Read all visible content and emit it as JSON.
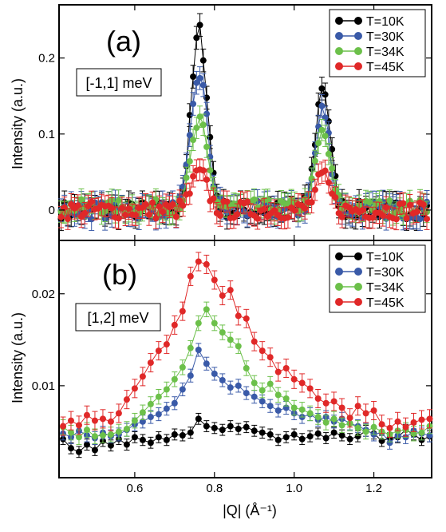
{
  "figure": {
    "xlabel": "|Q| (Å⁻¹)",
    "x_ticks": [
      0.6,
      0.8,
      1.0,
      1.2
    ],
    "x_tick_labels": [
      "0.6",
      "0.8",
      "1.0",
      "1.2"
    ]
  },
  "colors": {
    "T10": "#000000",
    "T30": "#3a5aa8",
    "T34": "#6cc04a",
    "T45": "#e02828"
  },
  "chart_data": [
    {
      "type": "scatter",
      "panel_label": "(a)",
      "annotation": "[-1,1] meV",
      "xlabel": "|Q| (Å⁻¹)",
      "ylabel": "Intensity (a.u.)",
      "xlim": [
        0.41,
        1.345
      ],
      "ylim": [
        -0.04,
        0.27
      ],
      "y_ticks": [
        0,
        0.1,
        0.2
      ],
      "y_tick_labels": [
        "0",
        "0.1",
        "0.2"
      ],
      "legend_position": "top-right",
      "error_bars": true,
      "peaks": [
        {
          "center": 0.762,
          "width": 0.02,
          "amplitudes": {
            "T=10K": 0.235,
            "T=30K": 0.18,
            "T=34K": 0.112,
            "T=45K": 0.048
          }
        },
        {
          "center": 1.072,
          "width": 0.018,
          "amplitudes": {
            "T=10K": 0.165,
            "T=30K": 0.132,
            "T=34K": 0.098,
            "T=45K": 0.043
          }
        }
      ],
      "series": [
        {
          "name": "T=10K",
          "color": "#000000",
          "baseline": 0.0,
          "noise": 0.012,
          "err": 0.015
        },
        {
          "name": "T=30K",
          "color": "#3a5aa8",
          "baseline": 0.0,
          "noise": 0.012,
          "err": 0.015
        },
        {
          "name": "T=34K",
          "color": "#6cc04a",
          "baseline": 0.004,
          "noise": 0.01,
          "err": 0.014
        },
        {
          "name": "T=45K",
          "color": "#e02828",
          "baseline": 0.0,
          "noise": 0.012,
          "err": 0.014
        }
      ]
    },
    {
      "type": "scatter",
      "panel_label": "(b)",
      "annotation": "[1,2] meV",
      "xlabel": "|Q| (Å⁻¹)",
      "ylabel": "Intensity (a.u.)",
      "xlim": [
        0.41,
        1.345
      ],
      "ylim": [
        0.0,
        0.0258
      ],
      "y_ticks": [
        0.01,
        0.02
      ],
      "y_tick_labels": [
        "0.01",
        "0.02"
      ],
      "legend_position": "top-right",
      "error_bars": true,
      "series": [
        {
          "name": "T=10K",
          "color": "#000000",
          "x": [
            0.42,
            0.44,
            0.46,
            0.48,
            0.5,
            0.52,
            0.54,
            0.56,
            0.58,
            0.6,
            0.62,
            0.64,
            0.66,
            0.68,
            0.7,
            0.72,
            0.74,
            0.76,
            0.78,
            0.8,
            0.82,
            0.84,
            0.86,
            0.88,
            0.9,
            0.92,
            0.94,
            0.96,
            0.98,
            1.0,
            1.02,
            1.04,
            1.06,
            1.08,
            1.1,
            1.12,
            1.14,
            1.16,
            1.18,
            1.2,
            1.22,
            1.24,
            1.26,
            1.28,
            1.3,
            1.32,
            1.34
          ],
          "y": [
            0.0042,
            0.0032,
            0.0028,
            0.0036,
            0.003,
            0.004,
            0.0035,
            0.0042,
            0.0036,
            0.0044,
            0.0041,
            0.0038,
            0.0044,
            0.0041,
            0.0047,
            0.0046,
            0.0049,
            0.0064,
            0.0056,
            0.0054,
            0.0052,
            0.0056,
            0.0053,
            0.0055,
            0.0051,
            0.0049,
            0.0047,
            0.0041,
            0.0044,
            0.0047,
            0.0042,
            0.0045,
            0.0048,
            0.0043,
            0.0049,
            0.0046,
            0.0042,
            0.0045,
            0.0051,
            0.0048,
            0.004,
            0.0043,
            0.0044,
            0.0052,
            0.0047,
            0.0041,
            0.0045
          ],
          "err": 0.0006
        },
        {
          "name": "T=30K",
          "color": "#3a5aa8",
          "x": [
            0.42,
            0.44,
            0.46,
            0.48,
            0.5,
            0.52,
            0.54,
            0.56,
            0.58,
            0.6,
            0.62,
            0.64,
            0.66,
            0.68,
            0.7,
            0.72,
            0.74,
            0.76,
            0.78,
            0.8,
            0.82,
            0.84,
            0.86,
            0.88,
            0.9,
            0.92,
            0.94,
            0.96,
            0.98,
            1.0,
            1.02,
            1.04,
            1.06,
            1.08,
            1.1,
            1.12,
            1.14,
            1.16,
            1.18,
            1.2,
            1.22,
            1.24,
            1.26,
            1.28,
            1.3,
            1.32,
            1.34
          ],
          "y": [
            0.0048,
            0.0044,
            0.0051,
            0.0046,
            0.0043,
            0.0049,
            0.0045,
            0.0047,
            0.0052,
            0.0058,
            0.0061,
            0.0066,
            0.0069,
            0.0075,
            0.0081,
            0.0096,
            0.0111,
            0.0139,
            0.0124,
            0.0113,
            0.0106,
            0.0098,
            0.01,
            0.0092,
            0.0088,
            0.0083,
            0.0078,
            0.0073,
            0.0076,
            0.007,
            0.0066,
            0.0069,
            0.0063,
            0.0066,
            0.0061,
            0.0064,
            0.0059,
            0.0056,
            0.0052,
            0.0047,
            0.0049,
            0.0038,
            0.0046,
            0.0044,
            0.0051,
            0.0048,
            0.0046
          ],
          "err": 0.0007
        },
        {
          "name": "T=34K",
          "color": "#6cc04a",
          "x": [
            0.42,
            0.44,
            0.46,
            0.48,
            0.5,
            0.52,
            0.54,
            0.56,
            0.58,
            0.6,
            0.62,
            0.64,
            0.66,
            0.68,
            0.7,
            0.72,
            0.74,
            0.76,
            0.78,
            0.8,
            0.82,
            0.84,
            0.86,
            0.88,
            0.9,
            0.92,
            0.94,
            0.96,
            0.98,
            1.0,
            1.02,
            1.04,
            1.06,
            1.08,
            1.1,
            1.12,
            1.14,
            1.16,
            1.18,
            1.2,
            1.22,
            1.24,
            1.26,
            1.28,
            1.3,
            1.32,
            1.34
          ],
          "y": [
            0.0055,
            0.0049,
            0.0044,
            0.0052,
            0.0045,
            0.0046,
            0.0047,
            0.005,
            0.0053,
            0.0062,
            0.0071,
            0.008,
            0.0088,
            0.0096,
            0.0107,
            0.012,
            0.0141,
            0.0168,
            0.0183,
            0.0168,
            0.0158,
            0.015,
            0.0143,
            0.0119,
            0.0103,
            0.0095,
            0.0102,
            0.009,
            0.0086,
            0.0076,
            0.0074,
            0.007,
            0.0066,
            0.006,
            0.0064,
            0.0057,
            0.0059,
            0.0054,
            0.005,
            0.0055,
            0.005,
            0.0047,
            0.0051,
            0.0052,
            0.0048,
            0.0049,
            0.0056
          ],
          "err": 0.0008
        },
        {
          "name": "T=45K",
          "color": "#e02828",
          "x": [
            0.42,
            0.44,
            0.46,
            0.48,
            0.5,
            0.52,
            0.54,
            0.56,
            0.58,
            0.6,
            0.62,
            0.64,
            0.66,
            0.68,
            0.7,
            0.72,
            0.74,
            0.76,
            0.78,
            0.8,
            0.82,
            0.84,
            0.86,
            0.88,
            0.9,
            0.92,
            0.94,
            0.96,
            0.98,
            1.0,
            1.02,
            1.04,
            1.06,
            1.08,
            1.1,
            1.12,
            1.14,
            1.16,
            1.18,
            1.2,
            1.22,
            1.24,
            1.26,
            1.28,
            1.3,
            1.32,
            1.34
          ],
          "y": [
            0.0056,
            0.0062,
            0.0057,
            0.0068,
            0.0062,
            0.0064,
            0.0061,
            0.007,
            0.0085,
            0.0097,
            0.011,
            0.0125,
            0.0138,
            0.0145,
            0.0166,
            0.0181,
            0.0219,
            0.0235,
            0.0232,
            0.0215,
            0.0198,
            0.0204,
            0.0176,
            0.0173,
            0.0148,
            0.0138,
            0.0131,
            0.0115,
            0.0119,
            0.0107,
            0.0103,
            0.0097,
            0.0086,
            0.0081,
            0.0083,
            0.0076,
            0.0065,
            0.0078,
            0.007,
            0.0073,
            0.0058,
            0.0054,
            0.0061,
            0.0055,
            0.006,
            0.0063,
            0.0064
          ],
          "err": 0.001
        }
      ]
    }
  ]
}
